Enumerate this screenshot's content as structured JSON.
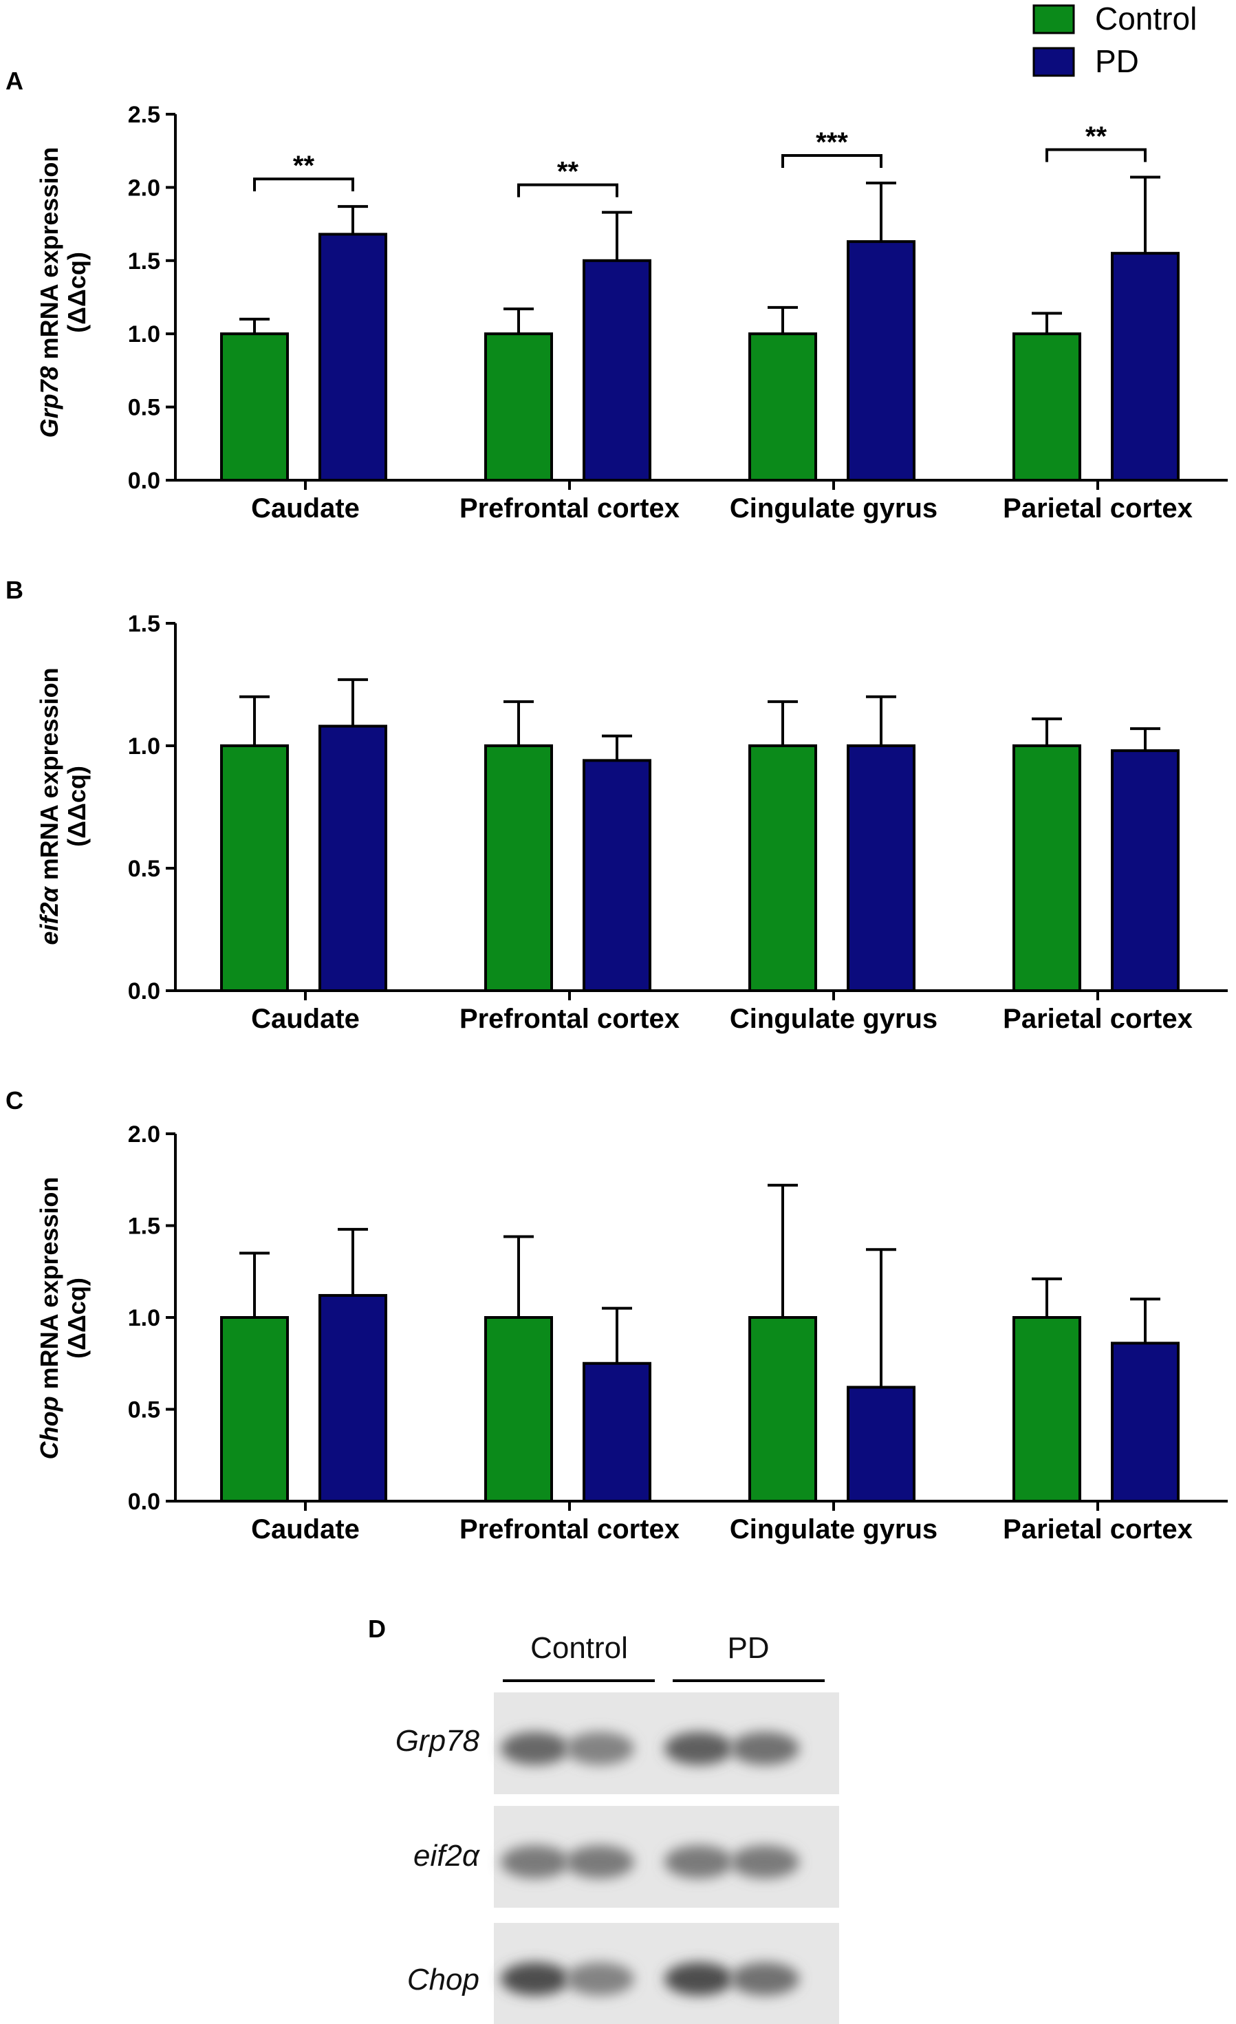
{
  "legend": {
    "items": [
      {
        "name": "Control",
        "color": "#0b8a1a"
      },
      {
        "name": "PD",
        "color": "#0b0b7d"
      }
    ]
  },
  "colors": {
    "axis": "#000000",
    "control": "#0b8a1a",
    "pd": "#0b0b7d"
  },
  "chart_data": [
    {
      "type": "bar",
      "panel": "A",
      "ylabel_gene": "Grp78",
      "ylabel_rest": " mRNA expression",
      "ylabel_unit": "(ΔΔcq)",
      "categories": [
        "Caudate",
        "Prefrontal cortex",
        "Cingulate gyrus",
        "Parietal cortex"
      ],
      "ylim": [
        0,
        2.5
      ],
      "yticks": [
        "0.0",
        "0.5",
        "1.0",
        "1.5",
        "2.0",
        "2.5"
      ],
      "series": [
        {
          "name": "Control",
          "values": [
            1.0,
            1.0,
            1.0,
            1.0
          ],
          "errors": [
            0.1,
            0.17,
            0.18,
            0.14
          ]
        },
        {
          "name": "PD",
          "values": [
            1.68,
            1.5,
            1.63,
            1.55
          ],
          "errors": [
            0.19,
            0.33,
            0.4,
            0.52
          ]
        }
      ],
      "significance": [
        "**",
        "**",
        "***",
        "**"
      ]
    },
    {
      "type": "bar",
      "panel": "B",
      "ylabel_gene": "eif2α",
      "ylabel_rest": " mRNA expression",
      "ylabel_unit": "(ΔΔcq)",
      "categories": [
        "Caudate",
        "Prefrontal cortex",
        "Cingulate gyrus",
        "Parietal cortex"
      ],
      "ylim": [
        0,
        1.5
      ],
      "yticks": [
        "0.0",
        "0.5",
        "1.0",
        "1.5"
      ],
      "series": [
        {
          "name": "Control",
          "values": [
            1.0,
            1.0,
            1.0,
            1.0
          ],
          "errors": [
            0.2,
            0.18,
            0.18,
            0.11
          ]
        },
        {
          "name": "PD",
          "values": [
            1.08,
            0.94,
            1.0,
            0.98
          ],
          "errors": [
            0.19,
            0.1,
            0.2,
            0.09
          ]
        }
      ],
      "significance": []
    },
    {
      "type": "bar",
      "panel": "C",
      "ylabel_gene": "Chop",
      "ylabel_rest": " mRNA expression",
      "ylabel_unit": "(ΔΔcq)",
      "categories": [
        "Caudate",
        "Prefrontal cortex",
        "Cingulate gyrus",
        "Parietal cortex"
      ],
      "ylim": [
        0,
        2.0
      ],
      "yticks": [
        "0.0",
        "0.5",
        "1.0",
        "1.5",
        "2.0"
      ],
      "series": [
        {
          "name": "Control",
          "values": [
            1.0,
            1.0,
            1.0,
            1.0
          ],
          "errors": [
            0.35,
            0.44,
            0.72,
            0.21
          ]
        },
        {
          "name": "PD",
          "values": [
            1.12,
            0.75,
            0.62,
            0.86
          ],
          "errors": [
            0.36,
            0.3,
            0.75,
            0.24
          ]
        }
      ],
      "significance": []
    }
  ],
  "blot": {
    "panel": "D",
    "groups": [
      "Control",
      "PD"
    ],
    "genes": [
      "Grp78",
      "eif2α",
      "Chop"
    ],
    "band_intensity": [
      [
        0.7,
        0.55,
        0.75,
        0.65
      ],
      [
        0.6,
        0.6,
        0.6,
        0.6
      ],
      [
        0.85,
        0.55,
        0.85,
        0.65
      ]
    ]
  }
}
